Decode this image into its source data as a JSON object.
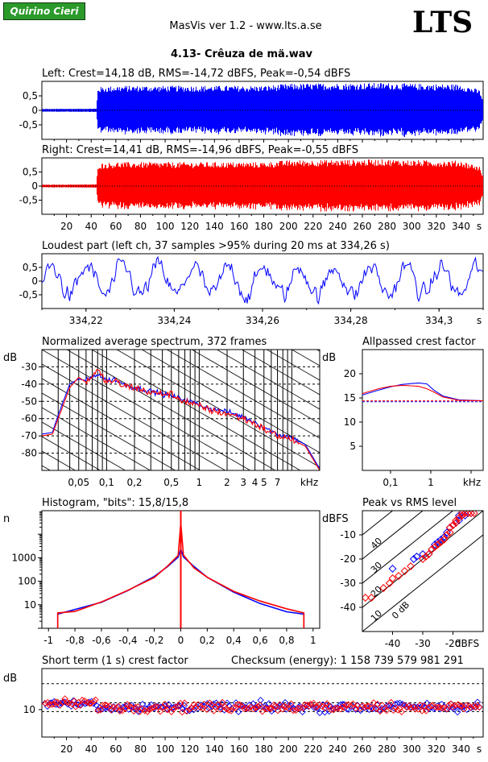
{
  "header": {
    "badge": "Quirino Cieri",
    "app_title": "MasVis ver 1.2 - www.lts.a.se",
    "logo": "LTS",
    "file_title": "4.13- Crêuza de mä.wav"
  },
  "colors": {
    "left": "#0000ff",
    "right": "#ff0000"
  },
  "chart_data": [
    {
      "id": "left-waveform",
      "type": "line",
      "title": "Left: Crest=14,18 dB, RMS=-14,72 dBFS, Peak=-0,54 dBFS",
      "yticks": [
        "0,5",
        "0",
        "-0,5"
      ],
      "ylim": [
        -1,
        1
      ],
      "xlim": [
        0,
        358
      ],
      "envelope": [
        [
          0,
          0.05
        ],
        [
          44,
          0.06
        ],
        [
          45,
          0.8
        ],
        [
          60,
          0.85
        ],
        [
          160,
          0.85
        ],
        [
          180,
          0.85
        ],
        [
          200,
          0.92
        ],
        [
          280,
          0.95
        ],
        [
          300,
          0.92
        ],
        [
          340,
          0.9
        ],
        [
          355,
          0.7
        ],
        [
          358,
          0.3
        ]
      ]
    },
    {
      "id": "right-waveform",
      "type": "line",
      "title": "Right: Crest=14,41 dB, RMS=-14,96 dBFS, Peak=-0,55 dBFS",
      "yticks": [
        "0,5",
        "0",
        "-0,5"
      ],
      "ylim": [
        -1,
        1
      ],
      "xlim": [
        0,
        358
      ],
      "xticks": [
        "20",
        "40",
        "60",
        "80",
        "100",
        "120",
        "140",
        "160",
        "180",
        "200",
        "220",
        "240",
        "260",
        "280",
        "300",
        "320",
        "340"
      ],
      "xunit": "s",
      "envelope": [
        [
          0,
          0.05
        ],
        [
          44,
          0.06
        ],
        [
          45,
          0.8
        ],
        [
          60,
          0.85
        ],
        [
          160,
          0.85
        ],
        [
          180,
          0.85
        ],
        [
          200,
          0.92
        ],
        [
          280,
          0.95
        ],
        [
          300,
          0.92
        ],
        [
          340,
          0.9
        ],
        [
          355,
          0.7
        ],
        [
          358,
          0.3
        ]
      ]
    },
    {
      "id": "loudest-part",
      "type": "line",
      "title": "Loudest part (left  ch, 37 samples >95% during 20 ms at 334,26 s)",
      "yticks": [
        "0,5",
        "0",
        "-0,5"
      ],
      "ylim": [
        -1,
        1
      ],
      "xlim": [
        334.21,
        334.31
      ],
      "xticks": [
        "334,22",
        "334,24",
        "334,26",
        "334,28",
        "334,3"
      ],
      "xunit": "s"
    },
    {
      "id": "average-spectrum",
      "type": "line",
      "title": "Normalized average spectrum, 372 frames",
      "ylabel": "dB",
      "yticks": [
        "-30",
        "-40",
        "-50",
        "-60",
        "-70",
        "-80"
      ],
      "ylim": [
        -90,
        -20
      ],
      "xticks": [
        "0,05",
        "0,1",
        "0,2",
        "0,5",
        "1",
        "2",
        "3",
        "4",
        "5",
        "7"
      ],
      "xunit": "kHz",
      "xlim": [
        0.02,
        20
      ],
      "series": [
        {
          "color": "blue",
          "points": [
            [
              0.02,
              -69
            ],
            [
              0.026,
              -68
            ],
            [
              0.03,
              -58
            ],
            [
              0.04,
              -40
            ],
            [
              0.05,
              -37
            ],
            [
              0.06,
              -38
            ],
            [
              0.08,
              -34
            ],
            [
              0.1,
              -38
            ],
            [
              0.12,
              -37
            ],
            [
              0.15,
              -40
            ],
            [
              0.2,
              -42
            ],
            [
              0.3,
              -44
            ],
            [
              0.5,
              -47
            ],
            [
              0.7,
              -49
            ],
            [
              1,
              -52
            ],
            [
              1.5,
              -55
            ],
            [
              2,
              -56
            ],
            [
              3,
              -59
            ],
            [
              4,
              -62
            ],
            [
              5,
              -65
            ],
            [
              7,
              -69
            ],
            [
              10,
              -71
            ],
            [
              14,
              -75
            ],
            [
              20,
              -89
            ]
          ]
        },
        {
          "color": "red",
          "points": [
            [
              0.02,
              -70
            ],
            [
              0.026,
              -69
            ],
            [
              0.03,
              -60
            ],
            [
              0.04,
              -42
            ],
            [
              0.05,
              -36
            ],
            [
              0.06,
              -39
            ],
            [
              0.08,
              -32
            ],
            [
              0.1,
              -39
            ],
            [
              0.12,
              -38
            ],
            [
              0.15,
              -41
            ],
            [
              0.2,
              -42
            ],
            [
              0.3,
              -45
            ],
            [
              0.5,
              -46
            ],
            [
              0.7,
              -50
            ],
            [
              1,
              -53
            ],
            [
              1.5,
              -56
            ],
            [
              2,
              -57
            ],
            [
              3,
              -60
            ],
            [
              4,
              -63
            ],
            [
              5,
              -66
            ],
            [
              7,
              -70
            ],
            [
              10,
              -72
            ],
            [
              14,
              -76
            ],
            [
              20,
              -90
            ]
          ]
        }
      ]
    },
    {
      "id": "allpassed-crest",
      "type": "line",
      "title": "Allpassed crest factor",
      "ylabel": "dB",
      "yticks": [
        "20",
        "15",
        "10",
        "5"
      ],
      "ylim": [
        0,
        25
      ],
      "xticks": [
        "0,1",
        "1",
        "kHz"
      ],
      "xlim": [
        0.02,
        20
      ],
      "series": [
        {
          "color": "blue",
          "points": [
            [
              0.02,
              15.6
            ],
            [
              0.05,
              16.6
            ],
            [
              0.1,
              17.3
            ],
            [
              0.2,
              17.8
            ],
            [
              0.5,
              18.1
            ],
            [
              0.8,
              17.9
            ],
            [
              1.2,
              16.6
            ],
            [
              2,
              15.4
            ],
            [
              5,
              14.6
            ],
            [
              20,
              14.4
            ]
          ]
        },
        {
          "color": "red",
          "points": [
            [
              0.02,
              15.9
            ],
            [
              0.05,
              16.9
            ],
            [
              0.1,
              17.4
            ],
            [
              0.2,
              17.6
            ],
            [
              0.5,
              17.4
            ],
            [
              0.8,
              16.9
            ],
            [
              1.2,
              16.2
            ],
            [
              2,
              15.2
            ],
            [
              5,
              14.5
            ],
            [
              20,
              14.4
            ]
          ]
        }
      ],
      "reference_lines": [
        {
          "color": "blue",
          "value": 14.2
        },
        {
          "color": "red",
          "value": 14.4
        }
      ]
    },
    {
      "id": "histogram",
      "type": "line",
      "title": "Histogram, \"bits\": 15,8/15,8",
      "ylabel": "n",
      "yticks": [
        "1000",
        "100",
        "10"
      ],
      "ylim": [
        1,
        100000
      ],
      "xticks": [
        "-1",
        "-0,8",
        "-0,6",
        "-0,4",
        "-0,2",
        "0",
        "0,2",
        "0,4",
        "0,6",
        "0,8",
        "1"
      ],
      "xlim": [
        -1.05,
        1.05
      ],
      "series": [
        {
          "color": "blue",
          "points": [
            [
              -0.93,
              1
            ],
            [
              -0.93,
              4
            ],
            [
              -0.8,
              5.5
            ],
            [
              -0.6,
              12
            ],
            [
              -0.4,
              40
            ],
            [
              -0.2,
              150
            ],
            [
              -0.1,
              400
            ],
            [
              -0.02,
              1100
            ],
            [
              0,
              2000
            ],
            [
              0.02,
              1100
            ],
            [
              0.1,
              400
            ],
            [
              0.2,
              150
            ],
            [
              0.4,
              40
            ],
            [
              0.6,
              12
            ],
            [
              0.8,
              5.5
            ],
            [
              0.93,
              4
            ],
            [
              0.93,
              1
            ]
          ]
        },
        {
          "color": "red",
          "points": [
            [
              -0.93,
              1
            ],
            [
              -0.93,
              4.5
            ],
            [
              -0.8,
              6
            ],
            [
              -0.6,
              13
            ],
            [
              -0.4,
              42
            ],
            [
              -0.2,
              160
            ],
            [
              -0.1,
              420
            ],
            [
              -0.02,
              1200
            ],
            [
              0,
              30000
            ],
            [
              0.02,
              1200
            ],
            [
              0.1,
              420
            ],
            [
              0.2,
              160
            ],
            [
              0.4,
              42
            ],
            [
              0.6,
              13
            ],
            [
              0.8,
              6
            ],
            [
              0.93,
              4.5
            ],
            [
              0.93,
              1
            ]
          ]
        }
      ]
    },
    {
      "id": "peak-vs-rms",
      "type": "scatter",
      "title": "Peak vs RMS level",
      "ylabel": "dBFS",
      "xlabel": "dBFS",
      "yticks": [
        "-10",
        "-20",
        "-30",
        "-40"
      ],
      "xticks": [
        "-40",
        "-30",
        "-20"
      ],
      "xlim": [
        -50,
        -10
      ],
      "ylim": [
        -50,
        0
      ],
      "diagonal_labels": [
        "40",
        "30",
        "20",
        "10",
        "0 dB"
      ],
      "series": [
        {
          "color": "blue",
          "points": [
            [
              -40,
              -24
            ],
            [
              -33,
              -20
            ],
            [
              -32,
              -19
            ],
            [
              -30,
              -18
            ],
            [
              -28,
              -18
            ],
            [
              -27,
              -16
            ],
            [
              -26,
              -14
            ],
            [
              -25,
              -13
            ],
            [
              -24,
              -12
            ],
            [
              -23,
              -11
            ],
            [
              -22,
              -9
            ],
            [
              -21,
              -7
            ],
            [
              -20,
              -6
            ],
            [
              -19,
              -5
            ],
            [
              -18,
              -4
            ],
            [
              -18,
              -2
            ],
            [
              -17,
              -1
            ],
            [
              -16,
              -2
            ],
            [
              -15,
              -1
            ],
            [
              -14,
              -1
            ]
          ]
        },
        {
          "color": "red",
          "points": [
            [
              -49,
              -36
            ],
            [
              -47,
              -36
            ],
            [
              -43,
              -32
            ],
            [
              -41,
              -30
            ],
            [
              -40,
              -28
            ],
            [
              -38,
              -27
            ],
            [
              -36,
              -25
            ],
            [
              -34,
              -23
            ],
            [
              -30,
              -20
            ],
            [
              -29,
              -19
            ],
            [
              -28,
              -18
            ],
            [
              -27,
              -16
            ],
            [
              -26,
              -15
            ],
            [
              -25,
              -14
            ],
            [
              -24,
              -13
            ],
            [
              -23,
              -12
            ],
            [
              -22,
              -10
            ],
            [
              -21,
              -9
            ],
            [
              -21,
              -7
            ],
            [
              -20,
              -6
            ],
            [
              -19,
              -5
            ],
            [
              -19,
              -4
            ],
            [
              -18,
              -3
            ],
            [
              -17,
              -2
            ],
            [
              -17,
              -1
            ],
            [
              -16,
              -1
            ],
            [
              -15,
              -1
            ],
            [
              -14,
              -1
            ],
            [
              -13,
              -1
            ]
          ]
        }
      ]
    },
    {
      "id": "short-term-crest",
      "type": "scatter",
      "title": "Short term (1 s) crest factor",
      "annotation": "Checksum (energy):  1 158 739 579 981 291",
      "ylabel": "dB",
      "yticks": [
        "10"
      ],
      "ylim": [
        0,
        25
      ],
      "xlim": [
        0,
        358
      ],
      "xticks": [
        "20",
        "40",
        "60",
        "80",
        "100",
        "120",
        "140",
        "160",
        "180",
        "200",
        "220",
        "240",
        "260",
        "280",
        "300",
        "320",
        "340"
      ],
      "xunit": "s",
      "ref_lines_db": [
        19.5,
        12.5,
        9.3
      ],
      "baseline_db": 11,
      "spread_db": 3.5
    }
  ]
}
